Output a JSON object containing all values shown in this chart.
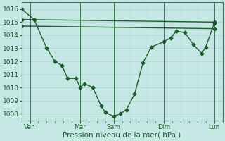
{
  "background_color": "#c5e8e5",
  "grid_color_major": "#aad4d0",
  "grid_color_minor": "#c0deda",
  "line_color": "#1a5c2a",
  "spine_color": "#3a7a4a",
  "yticks": [
    1008,
    1009,
    1010,
    1011,
    1012,
    1013,
    1014,
    1015,
    1016
  ],
  "ylim": [
    1007.5,
    1016.5
  ],
  "xlim": [
    0,
    24
  ],
  "xlabel": "Pression niveau de la mer( hPa )",
  "xtick_labels": [
    "Ven",
    "Mar",
    "Sam",
    "Dim",
    "Lun"
  ],
  "xtick_positions": [
    1,
    7,
    11,
    17,
    23
  ],
  "vline_positions": [
    1,
    7,
    11,
    17,
    23
  ],
  "line1_x": [
    0,
    1.5,
    3,
    4,
    4.8,
    5.5,
    6.5,
    7,
    7.5,
    8.5,
    9.5,
    10,
    11,
    11.8,
    12.5,
    13.5,
    14.5,
    15.5,
    17,
    17.8,
    18.5,
    19.5,
    20.5,
    21.5,
    22,
    23
  ],
  "line1_y": [
    1016.0,
    1015.2,
    1013.0,
    1012.0,
    1011.7,
    1010.7,
    1010.7,
    1010.0,
    1010.3,
    1010.0,
    1008.6,
    1008.1,
    1007.8,
    1008.0,
    1008.3,
    1009.5,
    1011.9,
    1013.1,
    1013.5,
    1013.8,
    1014.3,
    1014.2,
    1013.3,
    1012.6,
    1013.1,
    1014.9
  ],
  "line2_x": [
    0,
    23
  ],
  "line2_y": [
    1015.2,
    1015.0
  ],
  "line3_x": [
    0,
    23
  ],
  "line3_y": [
    1014.7,
    1014.5
  ],
  "marker": "D",
  "markersize": 2.5,
  "linewidth": 1.0,
  "tick_fontsize": 6.5,
  "xlabel_fontsize": 7.5
}
